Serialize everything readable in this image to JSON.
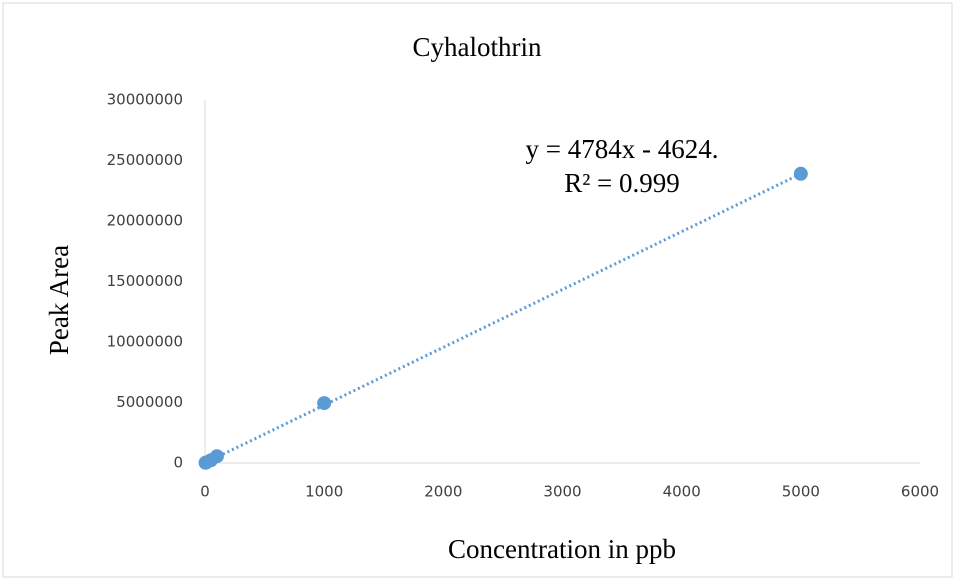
{
  "chart_data": {
    "type": "scatter",
    "title": "Cyhalothrin",
    "x_label": "Concentration in ppb",
    "y_label": "Peak Area",
    "series": [
      {
        "name": "Cyhalothrin",
        "color": "#5b9bd5",
        "x": [
          5,
          10,
          50,
          100,
          1000,
          5000
        ],
        "values": [
          20000,
          45000,
          230000,
          560000,
          4950000,
          23900000
        ]
      }
    ],
    "trendline": {
      "x": [
        0,
        5000
      ],
      "values": [
        0,
        23900000
      ],
      "color": "#5b9bd5"
    },
    "annotations": [
      "y = 4784x - 4624.",
      "R² = 0.999"
    ],
    "xlim": [
      0,
      6000
    ],
    "xticks": [
      0,
      1000,
      2000,
      3000,
      4000,
      5000,
      6000
    ],
    "ylim": [
      0,
      30000000
    ],
    "yticks": [
      0,
      5000000,
      10000000,
      15000000,
      20000000,
      25000000,
      30000000
    ],
    "grid": false
  }
}
